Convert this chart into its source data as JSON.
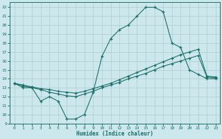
{
  "xlabel": "Humidex (Indice chaleur)",
  "bg_color": "#cce8ec",
  "grid_color": "#aacccc",
  "line_color": "#1a6e6a",
  "xlim": [
    -0.5,
    23.5
  ],
  "ylim": [
    9,
    22.6
  ],
  "xticks": [
    0,
    1,
    2,
    3,
    4,
    5,
    6,
    7,
    8,
    9,
    10,
    11,
    12,
    13,
    14,
    15,
    16,
    17,
    18,
    19,
    20,
    21,
    22,
    23
  ],
  "yticks": [
    9,
    10,
    11,
    12,
    13,
    14,
    15,
    16,
    17,
    18,
    19,
    20,
    21,
    22
  ],
  "curve1_y": [
    13.5,
    13.0,
    13.0,
    11.5,
    12.0,
    11.5,
    9.5,
    9.5,
    10.0,
    12.5,
    16.5,
    18.5,
    19.5,
    20.0,
    21.0,
    22.0,
    22.0,
    21.5,
    18.0,
    17.5,
    15.0,
    14.5,
    14.0,
    14.0
  ],
  "curve2_y": [
    13.5,
    13.2,
    13.0,
    12.8,
    12.5,
    12.3,
    12.1,
    12.0,
    12.3,
    12.6,
    13.0,
    13.3,
    13.6,
    14.0,
    14.3,
    14.6,
    15.0,
    15.4,
    15.7,
    16.0,
    16.3,
    16.6,
    14.2,
    14.1
  ],
  "curve3_y": [
    13.5,
    13.3,
    13.1,
    12.9,
    12.8,
    12.6,
    12.5,
    12.4,
    12.6,
    12.9,
    13.2,
    13.5,
    13.9,
    14.3,
    14.7,
    15.1,
    15.5,
    15.9,
    16.3,
    16.7,
    17.0,
    17.3,
    14.3,
    14.2
  ]
}
